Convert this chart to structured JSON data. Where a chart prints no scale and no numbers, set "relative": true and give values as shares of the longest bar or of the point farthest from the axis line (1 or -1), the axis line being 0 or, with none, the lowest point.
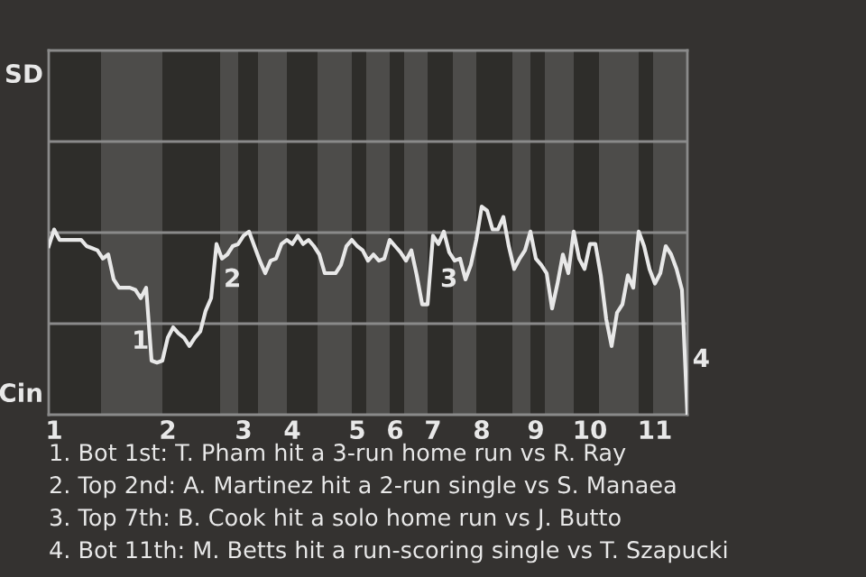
{
  "chart_data": {
    "type": "line",
    "relative": true,
    "categories": [
      null,
      "1",
      null,
      null,
      null,
      null,
      null,
      null,
      null,
      null,
      null,
      null,
      null,
      null,
      null,
      null,
      null,
      null,
      null,
      null,
      null,
      null,
      "2",
      null,
      null,
      null,
      null,
      null,
      null,
      null,
      null,
      null,
      null,
      null,
      null,
      null,
      "3",
      null,
      null,
      null,
      null,
      null,
      null,
      null,
      null,
      "4",
      null,
      null,
      null,
      null,
      null,
      null,
      null,
      null,
      null,
      null,
      null,
      "5",
      null,
      null,
      null,
      null,
      null,
      null,
      "6",
      null,
      null,
      null,
      null,
      null,
      null,
      "7",
      null,
      null,
      null,
      null,
      null,
      null,
      null,
      null,
      "8",
      null,
      null,
      null,
      null,
      null,
      null,
      null,
      null,
      null,
      "9",
      null,
      null,
      null,
      null,
      null,
      null,
      null,
      null,
      null,
      "10",
      null,
      null,
      null,
      null,
      null,
      null,
      null,
      null,
      null,
      null,
      null,
      "11",
      null,
      null,
      null,
      null,
      null,
      null
    ],
    "series": [
      {
        "color": "#e8e8e8",
        "values": [
          0.81,
          0.89,
          0.84,
          0.84,
          0.84,
          0.84,
          0.84,
          0.81,
          0.8,
          0.79,
          0.75,
          0.77,
          0.65,
          0.61,
          0.61,
          0.61,
          0.6,
          0.56,
          0.61,
          0.26,
          0.25,
          0.26,
          0.37,
          0.42,
          0.39,
          0.37,
          0.33,
          0.37,
          0.4,
          0.5,
          0.56,
          0.82,
          0.75,
          0.77,
          0.81,
          0.82,
          0.86,
          0.88,
          0.81,
          0.74,
          0.68,
          0.74,
          0.75,
          0.82,
          0.84,
          0.82,
          0.86,
          0.82,
          0.84,
          0.81,
          0.77,
          0.68,
          0.68,
          0.68,
          0.72,
          0.81,
          0.84,
          0.81,
          0.79,
          0.74,
          0.77,
          0.74,
          0.75,
          0.84,
          0.81,
          0.78,
          0.74,
          0.79,
          0.67,
          0.53,
          0.53,
          0.86,
          0.82,
          0.88,
          0.78,
          0.74,
          0.75,
          0.65,
          0.72,
          0.84,
          1,
          0.98,
          0.89,
          0.89,
          0.95,
          0.81,
          0.7,
          0.75,
          0.79,
          0.88,
          0.75,
          0.72,
          0.68,
          0.51,
          0.63,
          0.77,
          0.68,
          0.88,
          0.75,
          0.7,
          0.82,
          0.82,
          0.67,
          0.46,
          0.33,
          0.49,
          0.53,
          0.67,
          0.61,
          0.88,
          0.81,
          0.7,
          0.63,
          0.68,
          0.81,
          0.77,
          0.7,
          0.6,
          0
        ]
      }
    ],
    "legend": false,
    "marker": "none",
    "line_style": "solid",
    "ref_lines": [
      {
        "axis": "y",
        "value": 0.4375,
        "color": "#8a8a8a"
      },
      {
        "axis": "y",
        "value": 0.875,
        "color": "#8a8a8a"
      },
      {
        "axis": "y",
        "value": 1.3125,
        "color": "#8a8a8a"
      }
    ],
    "annotations": [
      "1",
      "2",
      "3",
      "4",
      "SD",
      "Cin",
      "1. Bot 1st: T. Pham hit a 3-run home run vs R. Ray",
      "2. Top 2nd: A. Martinez hit a 2-run single vs S. Manaea",
      "3. Top 7th: B. Cook hit a solo home run vs J. Butto",
      "4. Bot 11th: M. Betts hit a run-scoring single vs T. Szapucki"
    ]
  }
}
